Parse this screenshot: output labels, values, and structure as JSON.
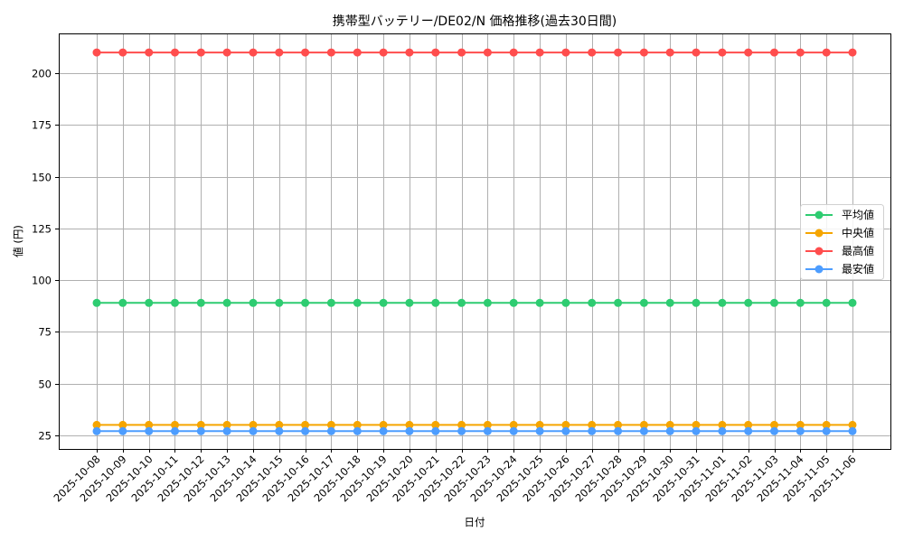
{
  "chart_data": {
    "type": "line",
    "title": "携帯型バッテリー/DE02/N 価格推移(過去30日間)",
    "xlabel": "日付",
    "ylabel": "値 (円)",
    "ylim": [
      18.4,
      219.2
    ],
    "yticks": [
      25,
      50,
      75,
      100,
      125,
      150,
      175,
      200
    ],
    "grid": true,
    "legend_position": "center right",
    "x": [
      "2025-10-08",
      "2025-10-09",
      "2025-10-10",
      "2025-10-11",
      "2025-10-12",
      "2025-10-13",
      "2025-10-14",
      "2025-10-15",
      "2025-10-16",
      "2025-10-17",
      "2025-10-18",
      "2025-10-19",
      "2025-10-20",
      "2025-10-21",
      "2025-10-22",
      "2025-10-23",
      "2025-10-24",
      "2025-10-25",
      "2025-10-26",
      "2025-10-27",
      "2025-10-28",
      "2025-10-29",
      "2025-10-30",
      "2025-10-31",
      "2025-11-01",
      "2025-11-02",
      "2025-11-03",
      "2025-11-04",
      "2025-11-05",
      "2025-11-06"
    ],
    "series": [
      {
        "name": "平均値",
        "color": "#2ecc71",
        "values": [
          89,
          89,
          89,
          89,
          89,
          89,
          89,
          89,
          89,
          89,
          89,
          89,
          89,
          89,
          89,
          89,
          89,
          89,
          89,
          89,
          89,
          89,
          89,
          89,
          89,
          89,
          89,
          89,
          89,
          89
        ]
      },
      {
        "name": "中央値",
        "color": "#f5a500",
        "values": [
          30,
          30,
          30,
          30,
          30,
          30,
          30,
          30,
          30,
          30,
          30,
          30,
          30,
          30,
          30,
          30,
          30,
          30,
          30,
          30,
          30,
          30,
          30,
          30,
          30,
          30,
          30,
          30,
          30,
          30
        ]
      },
      {
        "name": "最高値",
        "color": "#ff4d4d",
        "values": [
          210,
          210,
          210,
          210,
          210,
          210,
          210,
          210,
          210,
          210,
          210,
          210,
          210,
          210,
          210,
          210,
          210,
          210,
          210,
          210,
          210,
          210,
          210,
          210,
          210,
          210,
          210,
          210,
          210,
          210
        ]
      },
      {
        "name": "最安値",
        "color": "#4d9dff",
        "values": [
          27,
          27,
          27,
          27,
          27,
          27,
          27,
          27,
          27,
          27,
          27,
          27,
          27,
          27,
          27,
          27,
          27,
          27,
          27,
          27,
          27,
          27,
          27,
          27,
          27,
          27,
          27,
          27,
          27,
          27
        ]
      }
    ]
  }
}
